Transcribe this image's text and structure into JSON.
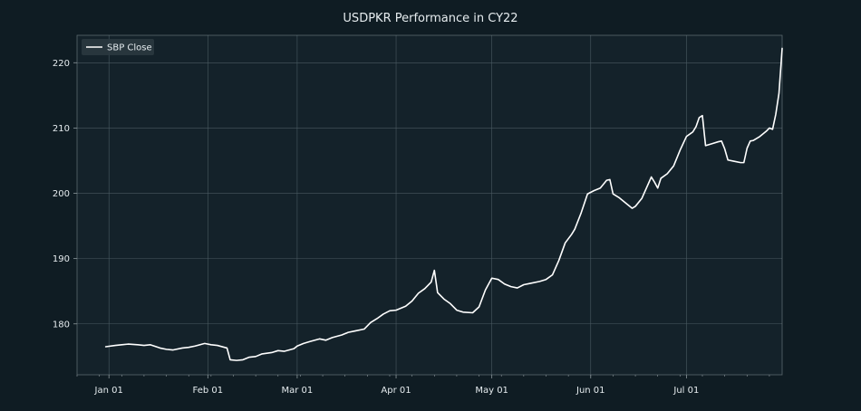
{
  "chart_data": {
    "type": "line",
    "title": "USDPKR Performance in CY22",
    "xlabel": "",
    "ylabel": "",
    "x_ticks": [
      {
        "label": "Jan 01",
        "date": "2022-01-01"
      },
      {
        "label": "Feb 01",
        "date": "2022-02-01"
      },
      {
        "label": "Mar 01",
        "date": "2022-03-01"
      },
      {
        "label": "Apr 01",
        "date": "2022-04-01"
      },
      {
        "label": "May 01",
        "date": "2022-05-01"
      },
      {
        "label": "Jun 01",
        "date": "2022-06-01"
      },
      {
        "label": "Jul 01",
        "date": "2022-07-01"
      }
    ],
    "y_ticks": [
      180,
      190,
      200,
      210,
      220
    ],
    "xlim": [
      "2021-12-22",
      "2022-07-31"
    ],
    "ylim": [
      172.2,
      224.2
    ],
    "grid": true,
    "legend": {
      "position": "top-left",
      "entries": [
        "SBP Close"
      ]
    },
    "colors": {
      "figure_bg": "#0f1c23",
      "axes_bg": "#14222a",
      "grid": "#4a5a62",
      "spine": "#8c979c",
      "text": "#e6ecef",
      "line": "#ffffff",
      "legend_bg": "#2c3a41"
    },
    "series": [
      {
        "name": "SBP Close",
        "points": [
          [
            "2021-12-31",
            176.5
          ],
          [
            "2022-01-03",
            176.7
          ],
          [
            "2022-01-05",
            176.8
          ],
          [
            "2022-01-07",
            176.9
          ],
          [
            "2022-01-10",
            176.8
          ],
          [
            "2022-01-12",
            176.7
          ],
          [
            "2022-01-14",
            176.8
          ],
          [
            "2022-01-17",
            176.3
          ],
          [
            "2022-01-19",
            176.1
          ],
          [
            "2022-01-21",
            176.0
          ],
          [
            "2022-01-24",
            176.3
          ],
          [
            "2022-01-26",
            176.4
          ],
          [
            "2022-01-28",
            176.6
          ],
          [
            "2022-01-31",
            177.0
          ],
          [
            "2022-02-02",
            176.8
          ],
          [
            "2022-02-04",
            176.7
          ],
          [
            "2022-02-07",
            176.3
          ],
          [
            "2022-02-08",
            174.5
          ],
          [
            "2022-02-10",
            174.4
          ],
          [
            "2022-02-12",
            174.5
          ],
          [
            "2022-02-14",
            174.9
          ],
          [
            "2022-02-16",
            175.0
          ],
          [
            "2022-02-18",
            175.4
          ],
          [
            "2022-02-21",
            175.6
          ],
          [
            "2022-02-23",
            175.9
          ],
          [
            "2022-02-25",
            175.8
          ],
          [
            "2022-02-28",
            176.2
          ],
          [
            "2022-03-01",
            176.6
          ],
          [
            "2022-03-03",
            177.0
          ],
          [
            "2022-03-05",
            177.3
          ],
          [
            "2022-03-08",
            177.7
          ],
          [
            "2022-03-10",
            177.5
          ],
          [
            "2022-03-12",
            177.9
          ],
          [
            "2022-03-15",
            178.3
          ],
          [
            "2022-03-17",
            178.7
          ],
          [
            "2022-03-19",
            178.9
          ],
          [
            "2022-03-22",
            179.2
          ],
          [
            "2022-03-24",
            180.2
          ],
          [
            "2022-03-26",
            180.8
          ],
          [
            "2022-03-28",
            181.5
          ],
          [
            "2022-03-30",
            182.0
          ],
          [
            "2022-04-01",
            182.1
          ],
          [
            "2022-04-04",
            182.7
          ],
          [
            "2022-04-06",
            183.5
          ],
          [
            "2022-04-08",
            184.7
          ],
          [
            "2022-04-10",
            185.4
          ],
          [
            "2022-04-12",
            186.4
          ],
          [
            "2022-04-13",
            188.2
          ],
          [
            "2022-04-14",
            184.8
          ],
          [
            "2022-04-16",
            183.8
          ],
          [
            "2022-04-18",
            183.1
          ],
          [
            "2022-04-20",
            182.1
          ],
          [
            "2022-04-22",
            181.8
          ],
          [
            "2022-04-25",
            181.7
          ],
          [
            "2022-04-27",
            182.6
          ],
          [
            "2022-04-29",
            185.2
          ],
          [
            "2022-05-01",
            187.0
          ],
          [
            "2022-05-03",
            186.8
          ],
          [
            "2022-05-05",
            186.1
          ],
          [
            "2022-05-07",
            185.7
          ],
          [
            "2022-05-09",
            185.5
          ],
          [
            "2022-05-11",
            186.0
          ],
          [
            "2022-05-13",
            186.2
          ],
          [
            "2022-05-16",
            186.5
          ],
          [
            "2022-05-18",
            186.8
          ],
          [
            "2022-05-20",
            187.5
          ],
          [
            "2022-05-22",
            189.7
          ],
          [
            "2022-05-24",
            192.4
          ],
          [
            "2022-05-26",
            193.7
          ],
          [
            "2022-05-27",
            194.5
          ],
          [
            "2022-05-29",
            197.0
          ],
          [
            "2022-05-31",
            199.9
          ],
          [
            "2022-06-02",
            200.4
          ],
          [
            "2022-06-04",
            200.8
          ],
          [
            "2022-06-06",
            202.0
          ],
          [
            "2022-06-07",
            202.1
          ],
          [
            "2022-06-08",
            199.9
          ],
          [
            "2022-06-10",
            199.3
          ],
          [
            "2022-06-13",
            198.1
          ],
          [
            "2022-06-14",
            197.7
          ],
          [
            "2022-06-15",
            198.0
          ],
          [
            "2022-06-17",
            199.2
          ],
          [
            "2022-06-20",
            202.5
          ],
          [
            "2022-06-21",
            201.7
          ],
          [
            "2022-06-22",
            200.8
          ],
          [
            "2022-06-23",
            202.3
          ],
          [
            "2022-06-25",
            203.0
          ],
          [
            "2022-06-27",
            204.2
          ],
          [
            "2022-06-29",
            206.6
          ],
          [
            "2022-07-01",
            208.7
          ],
          [
            "2022-07-03",
            209.4
          ],
          [
            "2022-07-04",
            210.2
          ],
          [
            "2022-07-05",
            211.6
          ],
          [
            "2022-07-06",
            211.9
          ],
          [
            "2022-07-07",
            207.3
          ],
          [
            "2022-07-09",
            207.6
          ],
          [
            "2022-07-11",
            207.9
          ],
          [
            "2022-07-12",
            208.0
          ],
          [
            "2022-07-13",
            206.8
          ],
          [
            "2022-07-14",
            205.1
          ],
          [
            "2022-07-16",
            204.9
          ],
          [
            "2022-07-18",
            204.7
          ],
          [
            "2022-07-19",
            204.7
          ],
          [
            "2022-07-20",
            206.9
          ],
          [
            "2022-07-21",
            208.0
          ],
          [
            "2022-07-22",
            208.1
          ],
          [
            "2022-07-24",
            208.7
          ],
          [
            "2022-07-26",
            209.5
          ],
          [
            "2022-07-27",
            210.0
          ],
          [
            "2022-07-28",
            209.8
          ],
          [
            "2022-07-29",
            212.1
          ],
          [
            "2022-07-30",
            215.3
          ],
          [
            "2022-07-31",
            222.2
          ]
        ]
      }
    ]
  }
}
